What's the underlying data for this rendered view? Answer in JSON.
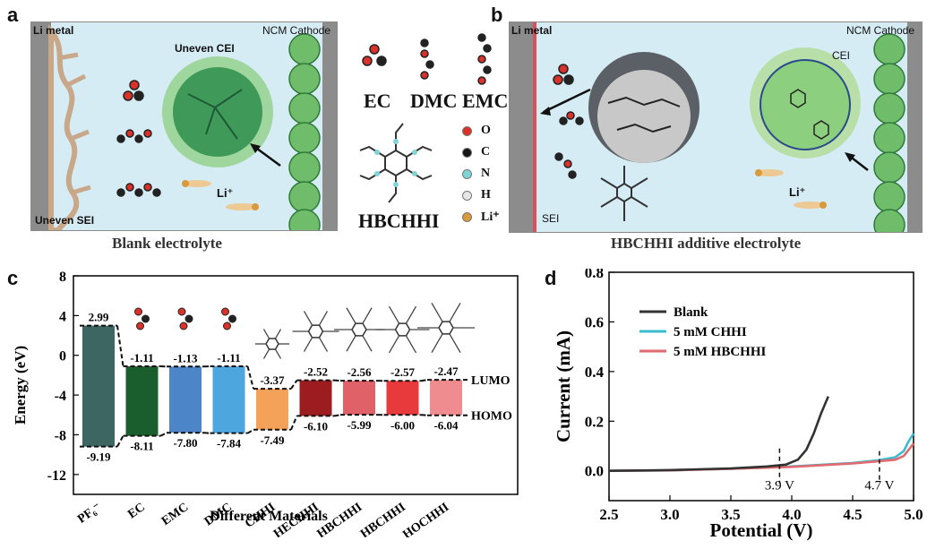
{
  "panel_a": {
    "letter": "a",
    "li_metal": "Li metal",
    "cathode": "NCM Cathode",
    "cei": "Uneven CEI",
    "sei": "Uneven SEI",
    "li_ion": "Li⁺",
    "caption": "Blank electrolyte"
  },
  "legend_molecules": {
    "ec": "EC",
    "dmc": "DMC",
    "emc": "EMC",
    "hbchhi": "HBCHHI",
    "atoms": [
      {
        "symbol": "O",
        "color": "#d8322a"
      },
      {
        "symbol": "C",
        "color": "#151515"
      },
      {
        "symbol": "N",
        "color": "#7fd4d8"
      },
      {
        "symbol": "H",
        "color": "#e6e6e6"
      },
      {
        "symbol": "Li⁺",
        "color": "#d89a3a"
      }
    ]
  },
  "panel_b": {
    "letter": "b",
    "li_metal": "Li metal",
    "cathode": "NCM Cathode",
    "cei": "CEI",
    "sei": "SEI",
    "li_ion": "Li⁺",
    "caption": "HBCHHI additive electrolyte"
  },
  "panel_c": {
    "letter": "c",
    "lumo_label": "LUMO",
    "homo_label": "HOMO"
  },
  "panel_d": {
    "letter": "d",
    "annotations": [
      "3.9 V",
      "4.7 V"
    ]
  },
  "chart_data": [
    {
      "type": "bar",
      "xlabel": "Different Materials",
      "ylabel": "Energy (eV)",
      "ylim": [
        -14,
        8
      ],
      "yticks": [
        -12,
        -8,
        -4,
        0,
        4,
        8
      ],
      "categories": [
        "PF₆⁻",
        "EC",
        "EMC",
        "DMC",
        "CHHI",
        "HECHHI",
        "HBCHHI",
        "HBCHHI",
        "HOCHHI"
      ],
      "lumo": [
        2.99,
        -1.11,
        -1.13,
        -1.11,
        -3.37,
        -2.52,
        -2.56,
        -2.57,
        -2.47
      ],
      "homo": [
        -9.19,
        -8.11,
        -7.8,
        -7.84,
        -7.49,
        -6.1,
        -5.99,
        -6.0,
        -6.04
      ],
      "lumo_labels": [
        "2.99",
        "-1.11",
        "-1.13",
        "-1.11",
        "-3.37",
        "-2.52",
        "-2.56",
        "-2.57",
        "-2.47"
      ],
      "homo_labels": [
        "-9.19",
        "-8.11",
        "-7.80",
        "-7.84",
        "-7.49",
        "-6.10",
        "-5.99",
        "-6.00",
        "-6.04"
      ],
      "colors": [
        "#3d6663",
        "#1a5e2e",
        "#4d86c8",
        "#4ea6df",
        "#f4a259",
        "#9c1c1f",
        "#e06168",
        "#e83a3c",
        "#ee8c8f"
      ]
    },
    {
      "type": "line",
      "xlabel": "Potential (V)",
      "ylabel": "Current (mA)",
      "xlim": [
        2.5,
        5.0
      ],
      "ylim": [
        -0.12,
        0.8
      ],
      "xticks": [
        2.5,
        3.0,
        3.5,
        4.0,
        4.5,
        5.0
      ],
      "yticks": [
        0.0,
        0.2,
        0.4,
        0.6,
        0.8
      ],
      "series": [
        {
          "name": "Blank",
          "color": "#333333",
          "x": [
            2.5,
            3.0,
            3.5,
            3.8,
            3.95,
            4.05,
            4.12,
            4.18,
            4.24,
            4.3
          ],
          "y": [
            0.0,
            0.003,
            0.01,
            0.018,
            0.025,
            0.045,
            0.085,
            0.15,
            0.23,
            0.3
          ]
        },
        {
          "name": "5 mM CHHI",
          "color": "#3cbccf",
          "x": [
            2.5,
            3.0,
            3.5,
            4.0,
            4.5,
            4.7,
            4.85,
            4.92,
            4.96,
            5.0
          ],
          "y": [
            0.0,
            0.002,
            0.008,
            0.018,
            0.032,
            0.042,
            0.055,
            0.08,
            0.12,
            0.15
          ]
        },
        {
          "name": "5 mM HBCHHI",
          "color": "#e06a70",
          "x": [
            2.5,
            3.0,
            3.5,
            4.0,
            4.5,
            4.7,
            4.85,
            4.92,
            4.96,
            5.0
          ],
          "y": [
            0.0,
            0.002,
            0.008,
            0.016,
            0.03,
            0.038,
            0.045,
            0.06,
            0.085,
            0.11
          ]
        }
      ]
    }
  ]
}
